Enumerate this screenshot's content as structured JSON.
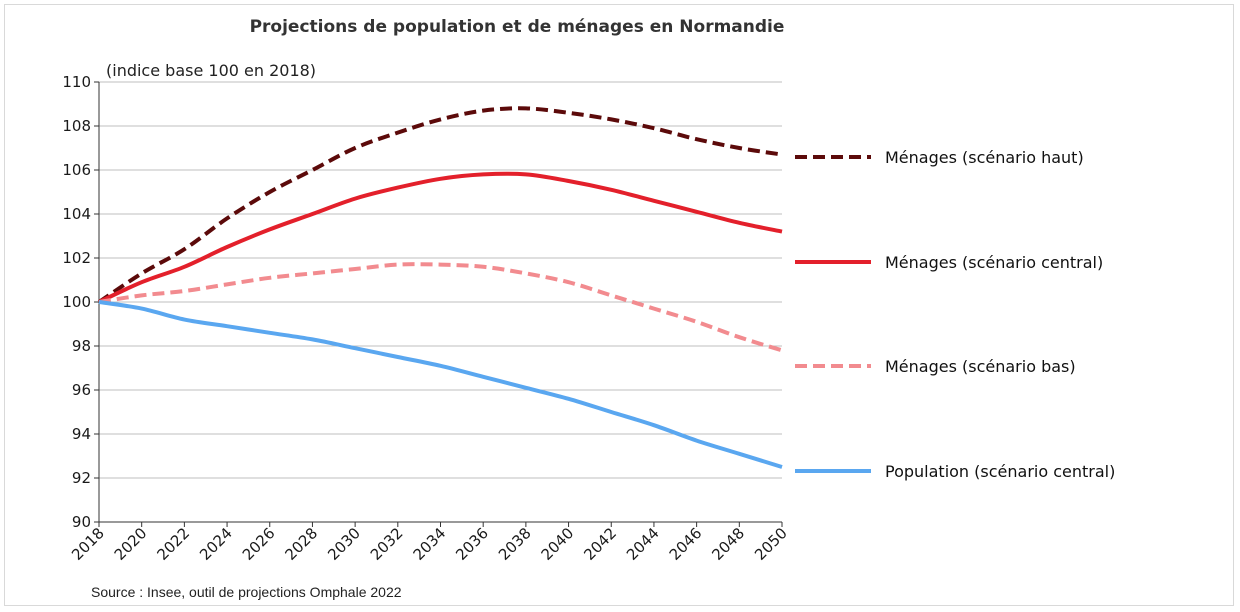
{
  "chart_data": {
    "type": "line",
    "title": "Projections de population et de ménages en Normandie",
    "unit_note": "(indice base 100 en 2018)",
    "source": "Source : Insee, outil de projections Omphale 2022",
    "xlabel": "",
    "ylabel": "",
    "ylim": [
      90,
      110
    ],
    "xlim": [
      2018,
      2050
    ],
    "y_ticks": [
      "90",
      "92",
      "94",
      "96",
      "98",
      "100",
      "102",
      "104",
      "106",
      "108",
      "110"
    ],
    "x_ticks": [
      "2018",
      "2020",
      "2022",
      "2024",
      "2026",
      "2028",
      "2030",
      "2032",
      "2034",
      "2036",
      "2038",
      "2040",
      "2042",
      "2044",
      "2046",
      "2048",
      "2050"
    ],
    "grid": "horizontal",
    "legend_placement": "right",
    "x": [
      2018,
      2020,
      2022,
      2024,
      2026,
      2028,
      2030,
      2032,
      2034,
      2036,
      2038,
      2040,
      2042,
      2044,
      2046,
      2048,
      2050
    ],
    "series": [
      {
        "name": "Ménages (scénario haut)",
        "color": "#5c0a0a",
        "dash": "dashed",
        "values": [
          100,
          101.3,
          102.4,
          103.8,
          105.0,
          106.0,
          107.0,
          107.7,
          108.3,
          108.7,
          108.8,
          108.6,
          108.3,
          107.9,
          107.4,
          107.0,
          106.7
        ]
      },
      {
        "name": "Ménages (scénario central)",
        "color": "#e3202b",
        "dash": "solid",
        "values": [
          100,
          100.9,
          101.6,
          102.5,
          103.3,
          104.0,
          104.7,
          105.2,
          105.6,
          105.8,
          105.8,
          105.5,
          105.1,
          104.6,
          104.1,
          103.6,
          103.2
        ]
      },
      {
        "name": "Ménages (scénario bas)",
        "color": "#f28b8f",
        "dash": "dashed",
        "values": [
          100,
          100.3,
          100.5,
          100.8,
          101.1,
          101.3,
          101.5,
          101.7,
          101.7,
          101.6,
          101.3,
          100.9,
          100.3,
          99.7,
          99.1,
          98.4,
          97.8
        ]
      },
      {
        "name": "Population (scénario central)",
        "color": "#5aa7f0",
        "dash": "solid",
        "values": [
          100,
          99.7,
          99.2,
          98.9,
          98.6,
          98.3,
          97.9,
          97.5,
          97.1,
          96.6,
          96.1,
          95.6,
          95.0,
          94.4,
          93.7,
          93.1,
          92.5
        ]
      }
    ]
  }
}
